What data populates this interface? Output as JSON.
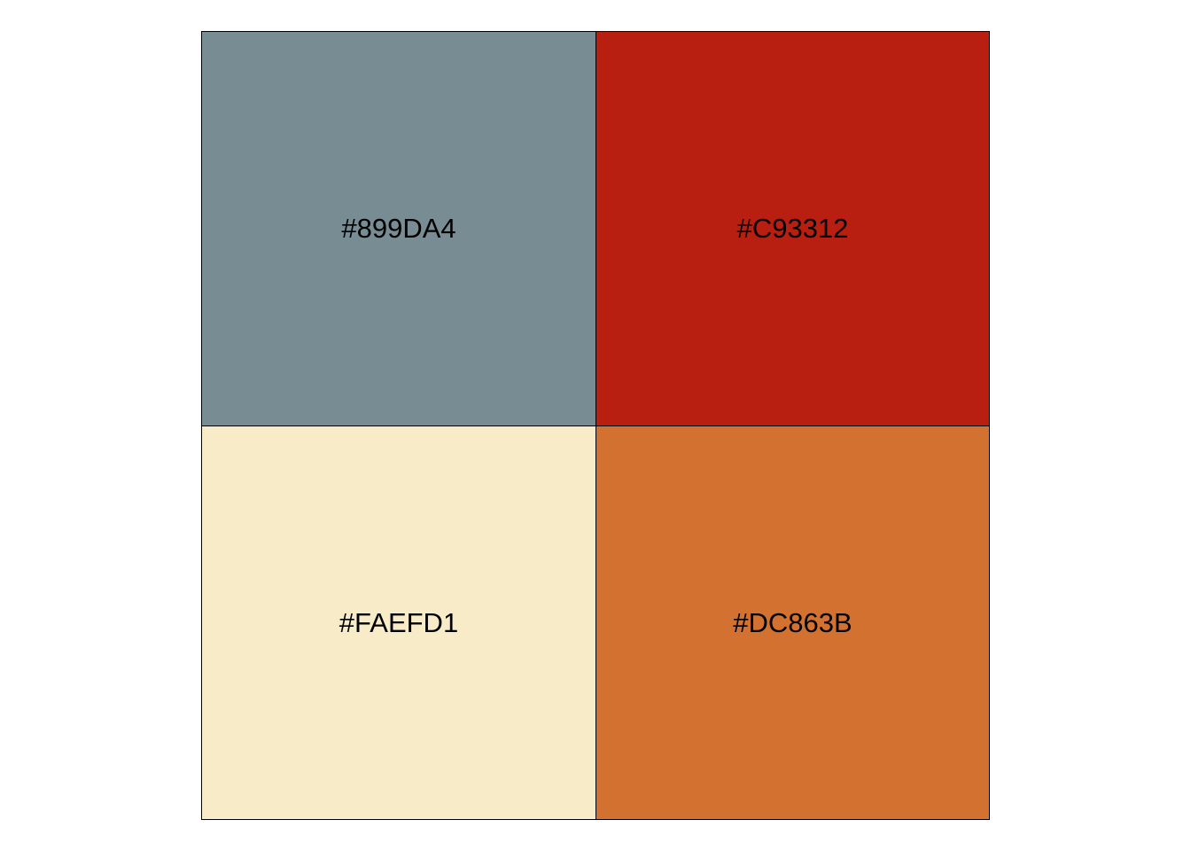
{
  "palette": {
    "swatches": [
      {
        "label": "#899DA4",
        "fill": "#788C94"
      },
      {
        "label": "#C93312",
        "fill": "#B91F10"
      },
      {
        "label": "#FAEFD1",
        "fill": "#F7EBC8"
      },
      {
        "label": "#DC863B",
        "fill": "#D37230"
      }
    ]
  }
}
